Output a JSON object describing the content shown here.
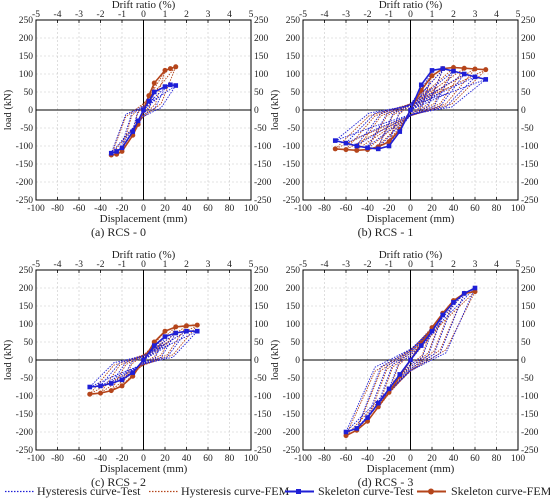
{
  "chart_data": [
    {
      "type": "line",
      "subtitle": "(a) RCS - 0",
      "top_xlabel": "Drift ratio (%)",
      "xlabel": "Displacement (mm)",
      "ylabel": "load (kN)",
      "xlim": [
        -100,
        100
      ],
      "ylim": [
        -250,
        250
      ],
      "top_xlim": [
        -5,
        5
      ],
      "x_ticks": [
        -100,
        -80,
        -60,
        -40,
        -20,
        0,
        20,
        40,
        60,
        80,
        100
      ],
      "y_ticks": [
        -250,
        -200,
        -150,
        -100,
        -50,
        0,
        50,
        100,
        150,
        200,
        250
      ],
      "top_ticks": [
        -5,
        -4,
        -3,
        -2,
        -1,
        0,
        1,
        2,
        3,
        4,
        5
      ],
      "grid": true,
      "skeleton_test": {
        "x": [
          -30,
          -25,
          -20,
          -10,
          -5,
          0,
          5,
          10,
          20,
          25,
          30
        ],
        "y": [
          -120,
          -115,
          -105,
          -60,
          -30,
          0,
          25,
          50,
          65,
          70,
          68
        ]
      },
      "skeleton_fem": {
        "x": [
          -30,
          -25,
          -20,
          -10,
          -5,
          0,
          5,
          10,
          20,
          25,
          30
        ],
        "y": [
          -125,
          -123,
          -115,
          -70,
          -40,
          0,
          40,
          75,
          110,
          115,
          120
        ]
      },
      "hysteresis_test": [
        [
          -10,
          10,
          -55,
          48
        ],
        [
          -20,
          20,
          -95,
          62
        ],
        [
          -30,
          30,
          -120,
          68
        ]
      ],
      "hysteresis_fem": [
        [
          -10,
          10,
          -65,
          70
        ],
        [
          -20,
          20,
          -110,
          108
        ],
        [
          -30,
          30,
          -125,
          120
        ]
      ]
    },
    {
      "type": "line",
      "subtitle": "(b) RCS - 1",
      "top_xlabel": "Drift ratio (%)",
      "xlabel": "Displacement (mm)",
      "ylabel": "load (kN)",
      "xlim": [
        -100,
        100
      ],
      "ylim": [
        -250,
        250
      ],
      "top_xlim": [
        -5,
        5
      ],
      "x_ticks": [
        -100,
        -80,
        -60,
        -40,
        -20,
        0,
        20,
        40,
        60,
        80,
        100
      ],
      "y_ticks": [
        -250,
        -200,
        -150,
        -100,
        -50,
        0,
        50,
        100,
        150,
        200,
        250
      ],
      "top_ticks": [
        -5,
        -4,
        -3,
        -2,
        -1,
        0,
        1,
        2,
        3,
        4,
        5
      ],
      "grid": true,
      "skeleton_test": {
        "x": [
          -70,
          -60,
          -50,
          -40,
          -30,
          -20,
          -10,
          0,
          10,
          20,
          30,
          40,
          50,
          60,
          70
        ],
        "y": [
          -85,
          -92,
          -100,
          -105,
          -108,
          -100,
          -60,
          0,
          70,
          110,
          115,
          108,
          100,
          92,
          85
        ]
      },
      "skeleton_fem": {
        "x": [
          -70,
          -60,
          -50,
          -40,
          -30,
          -20,
          -10,
          0,
          10,
          20,
          30,
          40,
          50,
          60,
          70
        ],
        "y": [
          -108,
          -110,
          -112,
          -110,
          -102,
          -88,
          -55,
          0,
          55,
          95,
          115,
          118,
          116,
          114,
          112
        ]
      },
      "hysteresis_test": [
        [
          -20,
          20,
          -95,
          105
        ],
        [
          -30,
          30,
          -105,
          112
        ],
        [
          -40,
          40,
          -103,
          108
        ],
        [
          -50,
          50,
          -98,
          100
        ],
        [
          -60,
          60,
          -92,
          92
        ],
        [
          -70,
          70,
          -85,
          85
        ]
      ],
      "hysteresis_fem": [
        [
          -20,
          20,
          -85,
          95
        ],
        [
          -30,
          30,
          -100,
          112
        ],
        [
          -40,
          40,
          -108,
          116
        ],
        [
          -50,
          50,
          -110,
          116
        ],
        [
          -60,
          60,
          -110,
          114
        ],
        [
          -70,
          70,
          -108,
          112
        ]
      ]
    },
    {
      "type": "line",
      "subtitle": "(c) RCS - 2",
      "top_xlabel": "Drift ratio (%)",
      "xlabel": "Displacement (mm)",
      "ylabel": "load (kN)",
      "xlim": [
        -100,
        100
      ],
      "ylim": [
        -250,
        250
      ],
      "top_xlim": [
        -5,
        5
      ],
      "x_ticks": [
        -100,
        -80,
        -60,
        -40,
        -20,
        0,
        20,
        40,
        60,
        80,
        100
      ],
      "y_ticks": [
        -250,
        -200,
        -150,
        -100,
        -50,
        0,
        50,
        100,
        150,
        200,
        250
      ],
      "top_ticks": [
        -5,
        -4,
        -3,
        -2,
        -1,
        0,
        1,
        2,
        3,
        4,
        5
      ],
      "grid": true,
      "skeleton_test": {
        "x": [
          -50,
          -40,
          -30,
          -20,
          -10,
          0,
          10,
          20,
          30,
          40,
          50
        ],
        "y": [
          -75,
          -72,
          -65,
          -55,
          -35,
          0,
          40,
          65,
          75,
          80,
          80
        ]
      },
      "skeleton_fem": {
        "x": [
          -50,
          -40,
          -30,
          -20,
          -10,
          0,
          10,
          20,
          30,
          40,
          50
        ],
        "y": [
          -95,
          -92,
          -85,
          -72,
          -45,
          0,
          50,
          80,
          92,
          95,
          97
        ]
      },
      "hysteresis_test": [
        [
          -20,
          20,
          -55,
          65
        ],
        [
          -30,
          30,
          -65,
          75
        ],
        [
          -40,
          40,
          -72,
          80
        ],
        [
          -50,
          50,
          -75,
          80
        ]
      ],
      "hysteresis_fem": [
        [
          -20,
          20,
          -72,
          80
        ],
        [
          -30,
          30,
          -85,
          92
        ],
        [
          -40,
          40,
          -92,
          95
        ],
        [
          -50,
          50,
          -95,
          97
        ]
      ]
    },
    {
      "type": "line",
      "subtitle": "(d) RCS - 3",
      "top_xlabel": "Drift ratio (%)",
      "xlabel": "Displacement (mm)",
      "ylabel": "load (kN)",
      "xlim": [
        -100,
        100
      ],
      "ylim": [
        -250,
        250
      ],
      "top_xlim": [
        -5,
        5
      ],
      "x_ticks": [
        -100,
        -80,
        -60,
        -40,
        -20,
        0,
        20,
        40,
        60,
        80,
        100
      ],
      "y_ticks": [
        -250,
        -200,
        -150,
        -100,
        -50,
        0,
        50,
        100,
        150,
        200,
        250
      ],
      "top_ticks": [
        -5,
        -4,
        -3,
        -2,
        -1,
        0,
        1,
        2,
        3,
        4,
        5
      ],
      "grid": true,
      "skeleton_test": {
        "x": [
          -60,
          -50,
          -40,
          -30,
          -20,
          -10,
          0,
          10,
          20,
          30,
          40,
          50,
          60
        ],
        "y": [
          -200,
          -190,
          -160,
          -120,
          -80,
          -40,
          0,
          40,
          80,
          125,
          160,
          185,
          200
        ]
      },
      "skeleton_fem": {
        "x": [
          -60,
          -50,
          -40,
          -30,
          -20,
          -10,
          0,
          10,
          20,
          30,
          40,
          50,
          60
        ],
        "y": [
          -210,
          -195,
          -170,
          -130,
          -90,
          -45,
          0,
          45,
          90,
          130,
          165,
          185,
          190
        ]
      },
      "hysteresis_test": [
        [
          -20,
          20,
          -80,
          80
        ],
        [
          -30,
          30,
          -120,
          125
        ],
        [
          -40,
          40,
          -160,
          160
        ],
        [
          -50,
          50,
          -190,
          185
        ],
        [
          -60,
          60,
          -200,
          200
        ]
      ],
      "hysteresis_fem": [
        [
          -20,
          20,
          -90,
          90
        ],
        [
          -30,
          30,
          -130,
          130
        ],
        [
          -40,
          40,
          -170,
          165
        ],
        [
          -50,
          50,
          -195,
          185
        ],
        [
          -60,
          60,
          -210,
          190
        ]
      ]
    }
  ],
  "legend": {
    "items": [
      {
        "label": "Hysteresis curve-Test",
        "color": "#1f1fd6",
        "style": "dotted",
        "marker": "none"
      },
      {
        "label": "Hysteresis curve-FEM",
        "color": "#b5451b",
        "style": "dotted",
        "marker": "none"
      },
      {
        "label": "Skeleton curve-Test",
        "color": "#1f1fd6",
        "style": "solid",
        "marker": "square"
      },
      {
        "label": "Skeleton curve-FEM",
        "color": "#b5451b",
        "style": "solid",
        "marker": "circle"
      }
    ]
  },
  "colors": {
    "test": "#1f1fd6",
    "fem": "#b5451b",
    "grid": "#c8c8c8",
    "axis": "#000000"
  }
}
